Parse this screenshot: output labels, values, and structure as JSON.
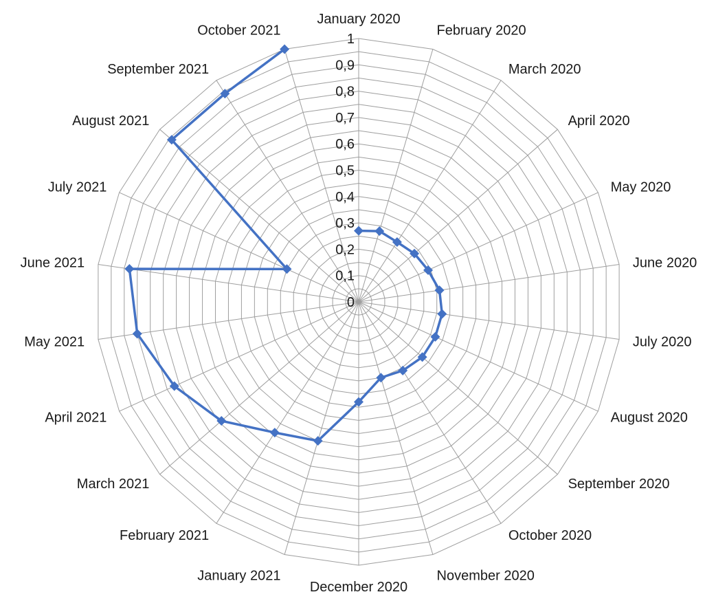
{
  "chart_data": {
    "type": "radar",
    "categories": [
      "January 2020",
      "February 2020",
      "March 2020",
      "April 2020",
      "May 2020",
      "June 2020",
      "July 2020",
      "August 2020",
      "September 2020",
      "October 2020",
      "November 2020",
      "December 2020",
      "January 2021",
      "February 2021",
      "March 2021",
      "April 2021",
      "May 2021",
      "June 2021",
      "July 2021",
      "August 2021",
      "September 2021",
      "October 2021"
    ],
    "category_labels": [
      "January 2020",
      "February  2020",
      "March  2020",
      "April  2020",
      "May  2020",
      "June  2020",
      "July  2020",
      "August  2020",
      "September  2020",
      "October  2020",
      "November 2020",
      "December 2020",
      "January 2021",
      "February  2021",
      "March  2021",
      "April  2021",
      "May  2021",
      "June  2021",
      "July  2021",
      "August  2021",
      "September  2021",
      "October  2021"
    ],
    "series": [
      {
        "values": [
          0.27,
          0.28,
          0.27,
          0.28,
          0.29,
          0.31,
          0.32,
          0.32,
          0.32,
          0.31,
          0.3,
          0.38,
          0.55,
          0.59,
          0.69,
          0.77,
          0.85,
          0.88,
          0.3,
          0.94,
          0.94,
          1.0
        ],
        "color": "#4472c4"
      }
    ],
    "rlim": [
      0,
      1
    ],
    "ticks": [
      "0",
      "0,1",
      "0,2",
      "0,3",
      "0,4",
      "0,5",
      "0,6",
      "0,7",
      "0,8",
      "0,9",
      "1"
    ],
    "grid": true,
    "legend": "none",
    "grid_color": "#9e9e9e",
    "marker": "diamond"
  }
}
